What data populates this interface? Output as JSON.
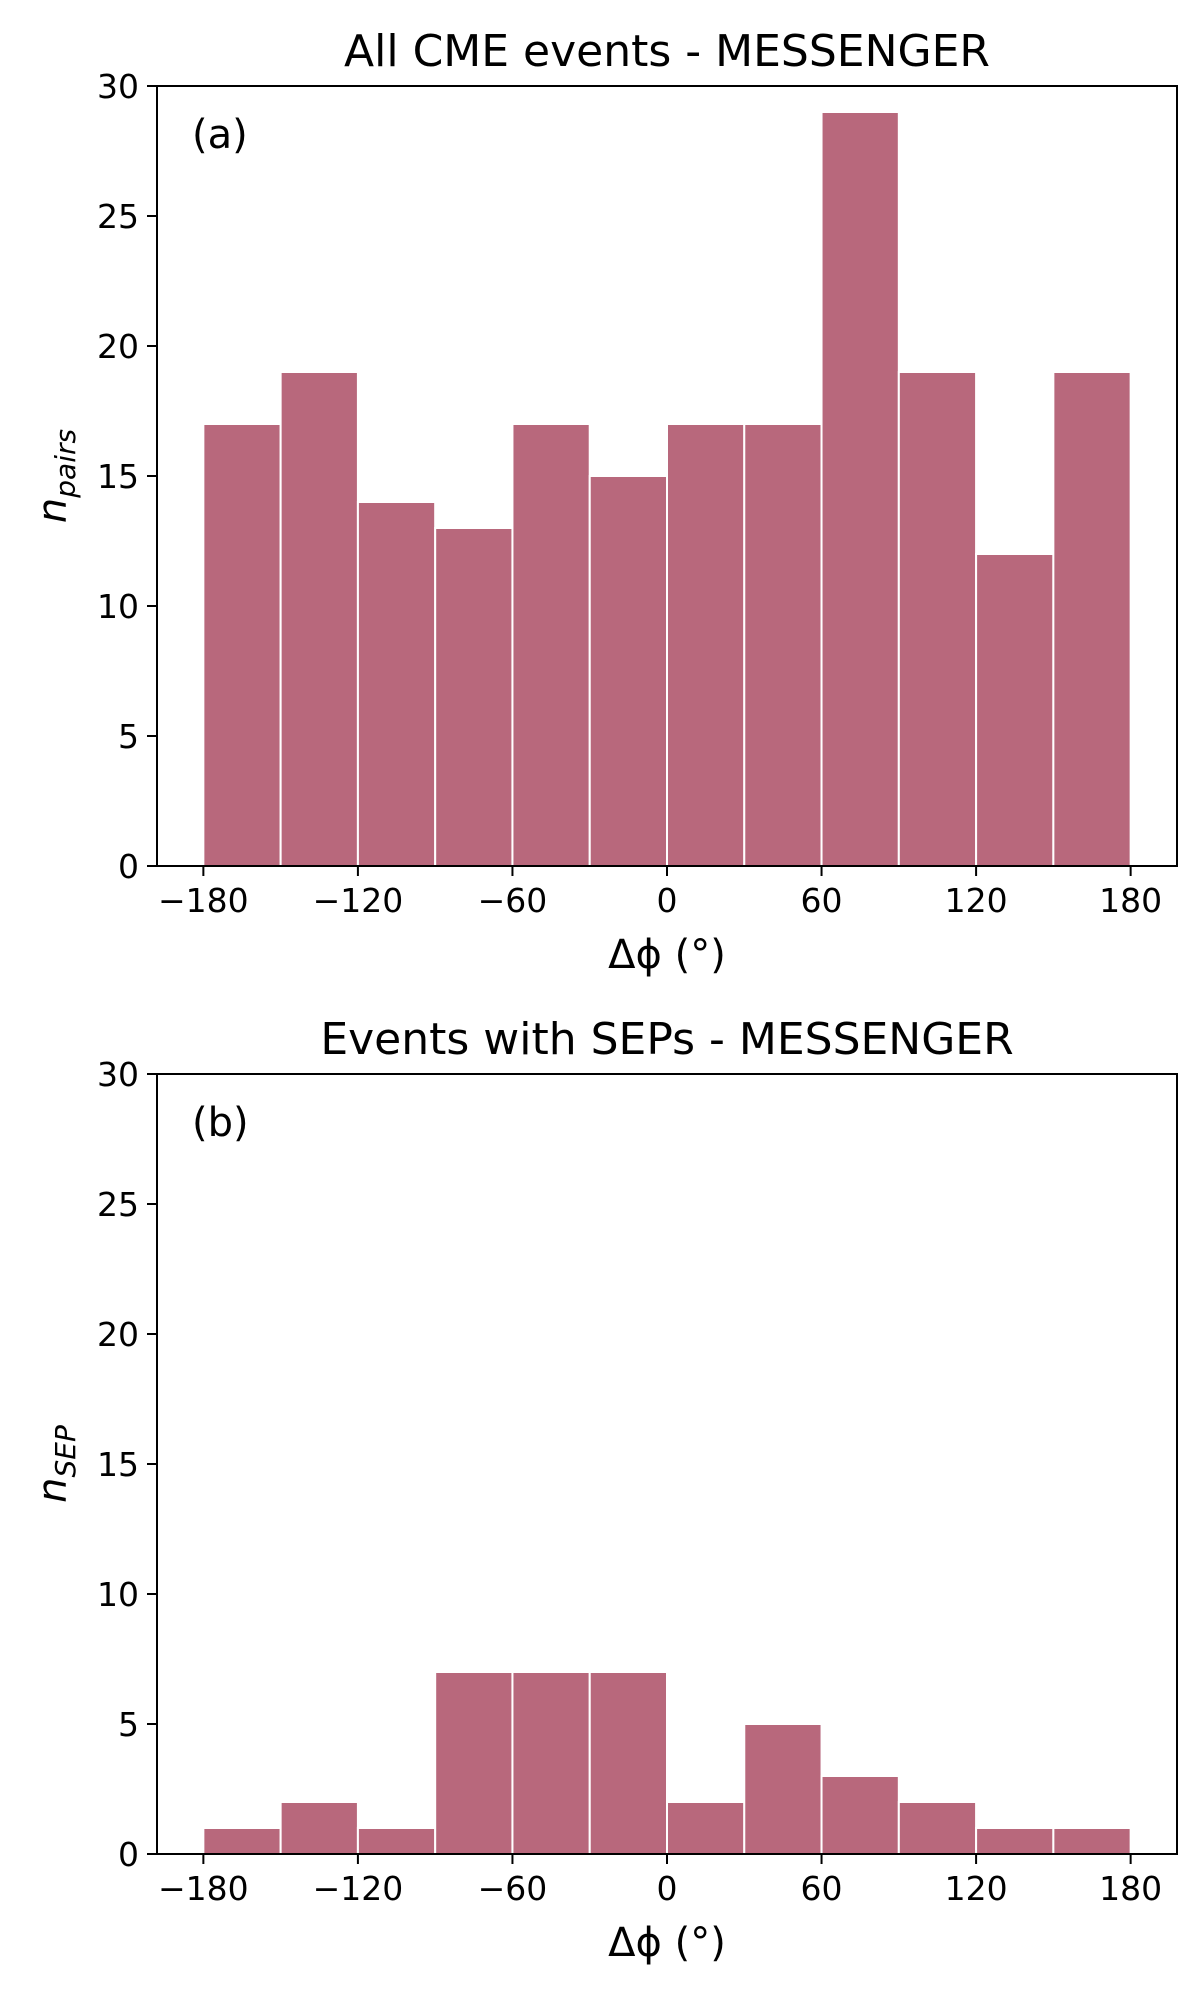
{
  "colors": {
    "bar": "#b8687c",
    "background": "#ffffff",
    "text": "#000000"
  },
  "chart_data": [
    {
      "type": "bar",
      "title": "All CME events - MESSENGER",
      "panel_label": "(a)",
      "xlabel": "Δϕ (°)",
      "ylabel": {
        "base": "n",
        "subscript": "pairs"
      },
      "bin_edges": [
        -180,
        -150,
        -120,
        -90,
        -60,
        -30,
        0,
        30,
        60,
        90,
        120,
        150,
        180
      ],
      "values": [
        17,
        19,
        14,
        13,
        17,
        15,
        17,
        17,
        29,
        19,
        12,
        19
      ],
      "xlim": [
        -198,
        198
      ],
      "ylim": [
        0,
        30
      ],
      "xticks": [
        -180,
        -120,
        -60,
        0,
        60,
        120,
        180
      ],
      "xtick_labels": [
        "−180",
        "−120",
        "−60",
        "0",
        "60",
        "120",
        "180"
      ],
      "yticks": [
        0,
        5,
        10,
        15,
        20,
        25,
        30
      ],
      "ytick_labels": [
        "0",
        "5",
        "10",
        "15",
        "20",
        "25",
        "30"
      ],
      "grid": false
    },
    {
      "type": "bar",
      "title": "Events with SEPs - MESSENGER",
      "panel_label": "(b)",
      "xlabel": "Δϕ (°)",
      "ylabel": {
        "base": "n",
        "subscript": "SEP"
      },
      "bin_edges": [
        -180,
        -150,
        -120,
        -90,
        -60,
        -30,
        0,
        30,
        60,
        90,
        120,
        150,
        180
      ],
      "values": [
        1,
        2,
        1,
        7,
        7,
        7,
        2,
        5,
        3,
        2,
        1,
        1
      ],
      "xlim": [
        -198,
        198
      ],
      "ylim": [
        0,
        30
      ],
      "xticks": [
        -180,
        -120,
        -60,
        0,
        60,
        120,
        180
      ],
      "xtick_labels": [
        "−180",
        "−120",
        "−60",
        "0",
        "60",
        "120",
        "180"
      ],
      "yticks": [
        0,
        5,
        10,
        15,
        20,
        25,
        30
      ],
      "ytick_labels": [
        "0",
        "5",
        "10",
        "15",
        "20",
        "25",
        "30"
      ],
      "grid": false
    }
  ]
}
